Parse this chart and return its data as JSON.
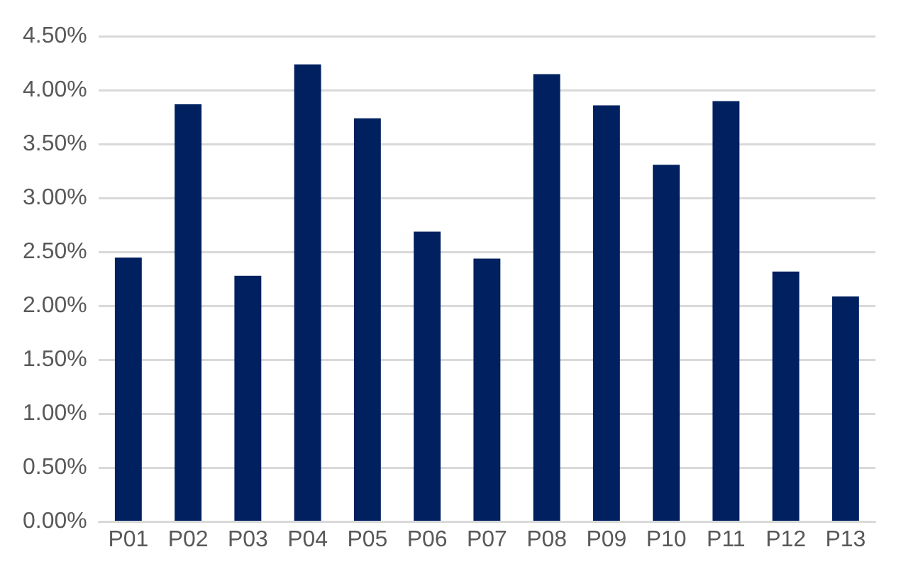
{
  "chart_data": {
    "type": "bar",
    "categories": [
      "P01",
      "P02",
      "P03",
      "P04",
      "P05",
      "P06",
      "P07",
      "P08",
      "P09",
      "P10",
      "P11",
      "P12",
      "P13"
    ],
    "values": [
      2.45,
      3.87,
      2.28,
      4.24,
      3.74,
      2.69,
      2.44,
      4.15,
      3.86,
      3.31,
      3.9,
      2.32,
      2.09
    ],
    "color": "#002060",
    "ylim": [
      0,
      4.5
    ],
    "yticks": [
      {
        "value": 0,
        "label": "0.00%"
      },
      {
        "value": 0.5,
        "label": "0.50%"
      },
      {
        "value": 1,
        "label": "1.00%"
      },
      {
        "value": 1.5,
        "label": "1.50%"
      },
      {
        "value": 2,
        "label": "2.00%"
      },
      {
        "value": 2.5,
        "label": "2.50%"
      },
      {
        "value": 3,
        "label": "3.00%"
      },
      {
        "value": 3.5,
        "label": "3.50%"
      },
      {
        "value": 4,
        "label": "4.00%"
      },
      {
        "value": 4.5,
        "label": "4.50%"
      }
    ],
    "grid": "y",
    "legend": false
  }
}
